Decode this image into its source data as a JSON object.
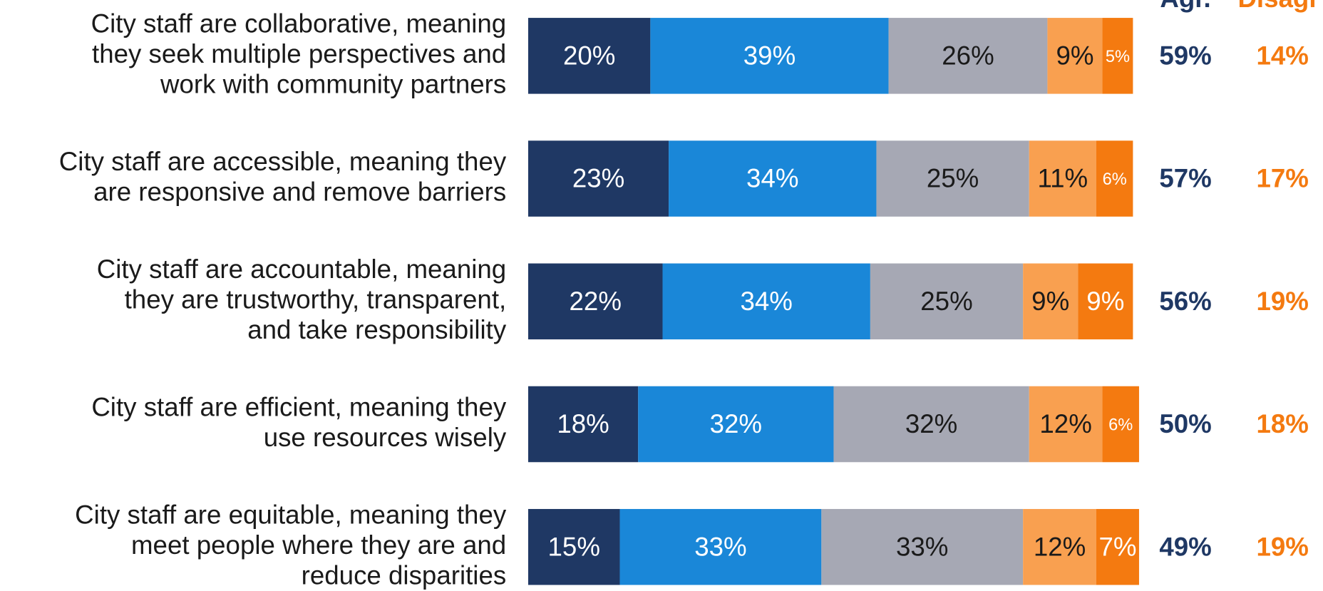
{
  "chart_data": {
    "type": "stacked-bar-horizontal",
    "categories": [
      [
        "City staff are collaborative, meaning",
        "they seek multiple perspectives and",
        "work with community partners"
      ],
      [
        "City staff are accessible, meaning they",
        "are responsive and remove barriers"
      ],
      [
        "City staff are accountable, meaning",
        "they are trustworthy, transparent,",
        "and take responsibility"
      ],
      [
        "City staff are efficient, meaning they",
        "use resources wisely"
      ],
      [
        "City staff are equitable, meaning they",
        "meet people where they are and",
        "reduce disparities"
      ]
    ],
    "xlim": [
      0,
      100
    ],
    "series": [
      {
        "color": "#1f3864",
        "label_color": "#ffffff",
        "values": [
          20,
          23,
          22,
          18,
          15
        ],
        "value_labels": [
          "20%",
          "23%",
          "22%",
          "18%",
          "15%"
        ]
      },
      {
        "color": "#1a87d8",
        "label_color": "#ffffff",
        "values": [
          39,
          34,
          34,
          32,
          33
        ],
        "value_labels": [
          "39%",
          "34%",
          "34%",
          "32%",
          "33%"
        ]
      },
      {
        "color": "#a6a8b4",
        "label_color": "#1a1a1a",
        "values": [
          26,
          25,
          25,
          32,
          33
        ],
        "value_labels": [
          "26%",
          "25%",
          "25%",
          "32%",
          "33%"
        ]
      },
      {
        "color": "#f9a050",
        "label_color": "#1a1a1a",
        "values": [
          9,
          11,
          9,
          12,
          12
        ],
        "value_labels": [
          "9%",
          "11%",
          "9%",
          "12%",
          "12%"
        ]
      },
      {
        "color": "#f47a10",
        "label_color": "#ffffff",
        "values": [
          5,
          6,
          9,
          6,
          7
        ],
        "value_labels": [
          "5%",
          "6%",
          "9%",
          "6%",
          "7%"
        ]
      }
    ],
    "totals": [
      {
        "header": "Agr.",
        "color": "#1f3864",
        "values": [
          59,
          57,
          56,
          50,
          49
        ],
        "value_labels": [
          "59%",
          "57%",
          "56%",
          "50%",
          "49%"
        ]
      },
      {
        "header": "Disagr",
        "color": "#f47a10",
        "values": [
          14,
          17,
          19,
          18,
          19
        ],
        "value_labels": [
          "14%",
          "17%",
          "19%",
          "18%",
          "19%"
        ]
      }
    ]
  }
}
